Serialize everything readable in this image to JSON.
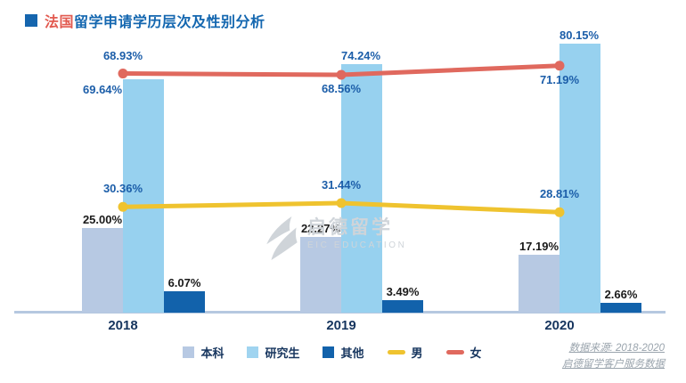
{
  "title": {
    "prefix": "法国",
    "rest": "留学申请学历层次及性别分析"
  },
  "watermark": {
    "name": "启德留学",
    "subtitle": "EIC EDUCATION"
  },
  "source": {
    "line1": "数据来源: 2018-2020",
    "line2": "启德留学客户服务数据"
  },
  "colors": {
    "title_square": "#1565ae",
    "title_red": "#e25a50",
    "title_blue": "#1467b0",
    "axis": "#b5c8e0",
    "year_label": "#16355e",
    "blue_value_label": "#1c5ea9",
    "dark_value_label": "#1a1a1a"
  },
  "chart_data": {
    "type": "bar+line combo",
    "title": "法国留学申请学历层次及性别分析",
    "categories": [
      "2018",
      "2019",
      "2020"
    ],
    "unit": "%",
    "ylim": [
      0,
      100
    ],
    "grid": false,
    "legend_position": "bottom",
    "bar_series": [
      {
        "name": "本科",
        "color": "#b7c9e3",
        "label_color": "#1a1a1a",
        "values": [
          25.0,
          22.27,
          17.19
        ]
      },
      {
        "name": "研究生",
        "color": "#97d1ef",
        "label_color": "#1c5ea9",
        "values": [
          69.64,
          74.24,
          80.15
        ]
      },
      {
        "name": "其他",
        "color": "#1262ab",
        "label_color": "#1a1a1a",
        "values": [
          6.07,
          3.49,
          2.66
        ]
      }
    ],
    "line_series": [
      {
        "name": "男",
        "color": "#efc32f",
        "label_color": "#1c5ea9",
        "values": [
          30.36,
          31.44,
          28.81
        ]
      },
      {
        "name": "女",
        "color": "#e0695e",
        "label_color": "#1c5ea9",
        "values": [
          68.93,
          68.56,
          71.19
        ]
      }
    ]
  },
  "legend": [
    {
      "label": "本科",
      "marker": "square",
      "color": "#b7c9e3"
    },
    {
      "label": "研究生",
      "marker": "square",
      "color": "#a0d4f0"
    },
    {
      "label": "其他",
      "marker": "square",
      "color": "#1262ab"
    },
    {
      "label": "男",
      "marker": "line",
      "color": "#efc32f"
    },
    {
      "label": "女",
      "marker": "line",
      "color": "#e0695e"
    }
  ]
}
